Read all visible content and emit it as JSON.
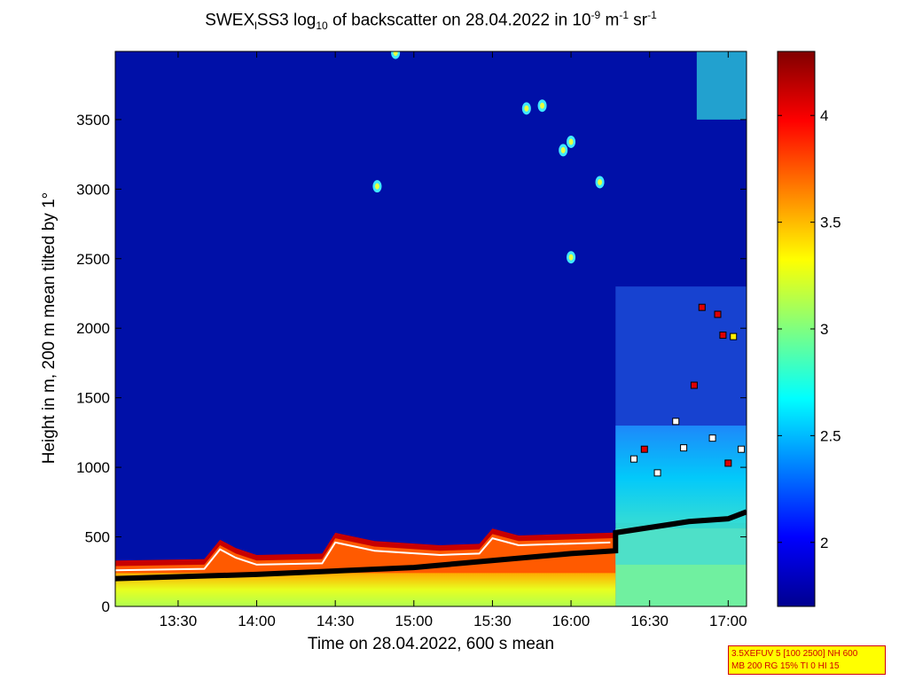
{
  "chart_data": {
    "type": "heatmap",
    "title": {
      "prefix": "SWEX",
      "sub1": "l",
      "mid": "SS3 log",
      "sub2": "10",
      "mid2": " of backscatter on 28.04.2022 in 10",
      "sup1": "-9",
      "mid3": " m",
      "sup2": "-1",
      "mid4": " sr",
      "sup3": "-1"
    },
    "xlabel": "Time on 28.04.2022, 600 s mean",
    "ylabel": "Height in m, 200 m mean tilted by 1°",
    "x_ticks": [
      "13:30",
      "14:00",
      "14:30",
      "15:00",
      "15:30",
      "16:00",
      "16:30",
      "17:00"
    ],
    "x_range": [
      "13:06",
      "17:07"
    ],
    "y_ticks": [
      0,
      500,
      1000,
      1500,
      2000,
      2500,
      3000,
      3500
    ],
    "y_range": [
      0,
      3990
    ],
    "colorbar": {
      "range": [
        1.7,
        4.3
      ],
      "ticks": [
        "2",
        "2.5",
        "3",
        "3.5",
        "4"
      ],
      "colormap": "jet"
    },
    "background_value": 1.8,
    "boundary_layer_top": [
      {
        "time": "13:06",
        "height": 330
      },
      {
        "time": "13:40",
        "height": 340
      },
      {
        "time": "13:46",
        "height": 480
      },
      {
        "time": "13:52",
        "height": 420
      },
      {
        "time": "14:00",
        "height": 370
      },
      {
        "time": "14:25",
        "height": 380
      },
      {
        "time": "14:30",
        "height": 530
      },
      {
        "time": "14:45",
        "height": 470
      },
      {
        "time": "15:10",
        "height": 440
      },
      {
        "time": "15:25",
        "height": 450
      },
      {
        "time": "15:30",
        "height": 560
      },
      {
        "time": "15:40",
        "height": 510
      },
      {
        "time": "16:15",
        "height": 530
      }
    ],
    "layer_marker_heights": [
      {
        "time": "13:06",
        "height": 200
      },
      {
        "time": "14:00",
        "height": 230
      },
      {
        "time": "15:00",
        "height": 280
      },
      {
        "time": "16:00",
        "height": 380
      },
      {
        "time": "16:17",
        "height": 400
      },
      {
        "time": "16:17",
        "height": 530
      },
      {
        "time": "16:45",
        "height": 610
      },
      {
        "time": "17:00",
        "height": 630
      },
      {
        "time": "17:07",
        "height": 680
      }
    ],
    "cloud_points": [
      {
        "time": "16:24",
        "height": 1060,
        "color": "white"
      },
      {
        "time": "16:28",
        "height": 1130,
        "color": "red"
      },
      {
        "time": "16:33",
        "height": 960,
        "color": "white"
      },
      {
        "time": "16:40",
        "height": 1330,
        "color": "white"
      },
      {
        "time": "16:43",
        "height": 1140,
        "color": "white"
      },
      {
        "time": "16:47",
        "height": 1590,
        "color": "red"
      },
      {
        "time": "16:50",
        "height": 2150,
        "color": "red"
      },
      {
        "time": "16:54",
        "height": 1210,
        "color": "white"
      },
      {
        "time": "16:56",
        "height": 2100,
        "color": "red"
      },
      {
        "time": "16:58",
        "height": 1950,
        "color": "red"
      },
      {
        "time": "17:00",
        "height": 1030,
        "color": "red"
      },
      {
        "time": "17:02",
        "height": 1940,
        "color": "yellow"
      },
      {
        "time": "17:05",
        "height": 1130,
        "color": "white"
      }
    ],
    "aerosol_blobs": [
      {
        "time": "14:53",
        "height": 3980
      },
      {
        "time": "15:49",
        "height": 3600
      },
      {
        "time": "15:43",
        "height": 3580
      },
      {
        "time": "16:00",
        "height": 3340
      },
      {
        "time": "16:11",
        "height": 3050
      },
      {
        "time": "14:46",
        "height": 3020
      },
      {
        "time": "16:00",
        "height": 2510
      },
      {
        "time": "15:57",
        "height": 3280
      }
    ]
  },
  "info_box": {
    "line1": "3.5XEFUV 5 [100 2500] NH 600",
    "line2": "MB 200 RG 15% TI 0 HI 15"
  }
}
